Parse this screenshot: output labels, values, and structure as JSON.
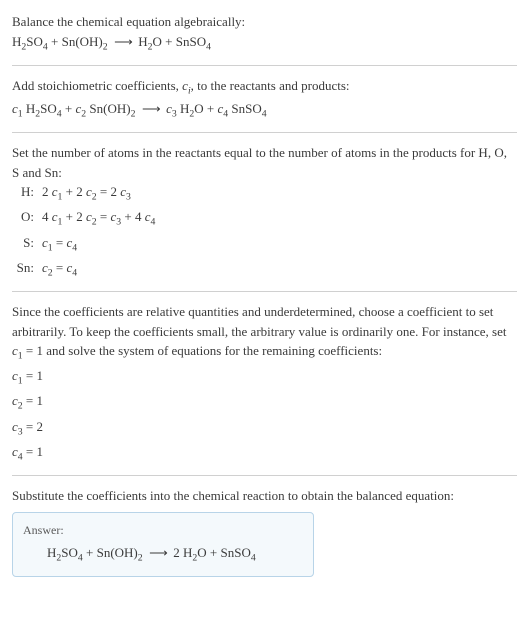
{
  "intro": {
    "line1": "Balance the chemical equation algebraically:",
    "equation_html": "H<span class='sub'>2</span>SO<span class='sub'>4</span> + Sn(OH)<span class='sub'>2</span>&nbsp; <span class='arrow'>⟶</span> &nbsp;H<span class='sub'>2</span>O + SnSO<span class='sub'>4</span>"
  },
  "step1": {
    "text_html": "Add stoichiometric coefficients, <span class='italic'>c<span class='sub'>i</span></span>, to the reactants and products:",
    "equation_html": "<span class='italic'>c</span><span class='sub'>1</span> H<span class='sub'>2</span>SO<span class='sub'>4</span> + <span class='italic'>c</span><span class='sub'>2</span> Sn(OH)<span class='sub'>2</span>&nbsp; <span class='arrow'>⟶</span> &nbsp;<span class='italic'>c</span><span class='sub'>3</span> H<span class='sub'>2</span>O + <span class='italic'>c</span><span class='sub'>4</span> SnSO<span class='sub'>4</span>"
  },
  "step2": {
    "text": "Set the number of atoms in the reactants equal to the number of atoms in the products for H, O, S and Sn:",
    "rows": [
      {
        "label": "H:",
        "eq_html": "2 <span class='italic'>c</span><span class='sub'>1</span> + 2 <span class='italic'>c</span><span class='sub'>2</span> = 2 <span class='italic'>c</span><span class='sub'>3</span>"
      },
      {
        "label": "O:",
        "eq_html": "4 <span class='italic'>c</span><span class='sub'>1</span> + 2 <span class='italic'>c</span><span class='sub'>2</span> = <span class='italic'>c</span><span class='sub'>3</span> + 4 <span class='italic'>c</span><span class='sub'>4</span>"
      },
      {
        "label": "S:",
        "eq_html": "<span class='italic'>c</span><span class='sub'>1</span> = <span class='italic'>c</span><span class='sub'>4</span>"
      },
      {
        "label": "Sn:",
        "eq_html": "<span class='italic'>c</span><span class='sub'>2</span> = <span class='italic'>c</span><span class='sub'>4</span>"
      }
    ]
  },
  "step3": {
    "text_html": "Since the coefficients are relative quantities and underdetermined, choose a coefficient to set arbitrarily. To keep the coefficients small, the arbitrary value is ordinarily one. For instance, set <span class='italic'>c</span><span class='sub'>1</span> = 1 and solve the system of equations for the remaining coefficients:",
    "coeffs": [
      "<span class='italic'>c</span><span class='sub'>1</span> = 1",
      "<span class='italic'>c</span><span class='sub'>2</span> = 1",
      "<span class='italic'>c</span><span class='sub'>3</span> = 2",
      "<span class='italic'>c</span><span class='sub'>4</span> = 1"
    ]
  },
  "step4": {
    "text": "Substitute the coefficients into the chemical reaction to obtain the balanced equation:"
  },
  "answer": {
    "label": "Answer:",
    "equation_html": "H<span class='sub'>2</span>SO<span class='sub'>4</span> + Sn(OH)<span class='sub'>2</span>&nbsp; <span class='arrow'>⟶</span> &nbsp;2 H<span class='sub'>2</span>O + SnSO<span class='sub'>4</span>"
  },
  "colors": {
    "text": "#3a3a3a",
    "rule": "#d0d0d0",
    "answer_border": "#b8d4e8",
    "answer_bg": "#f4f9fc"
  }
}
